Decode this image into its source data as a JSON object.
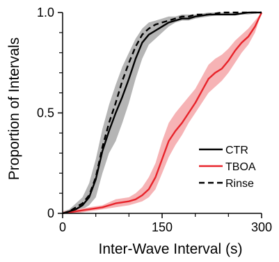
{
  "chart_data": {
    "type": "line",
    "title": "",
    "xlabel": "Inter-Wave Interval (s)",
    "ylabel": "Proportion of Intervals",
    "xlim": [
      0,
      300
    ],
    "ylim": [
      0,
      1
    ],
    "x_ticks": [
      0,
      150,
      300
    ],
    "x_tick_labels": [
      "0",
      "150",
      "300"
    ],
    "y_ticks": [
      0,
      0.5,
      1
    ],
    "y_tick_labels": [
      "0",
      "0.5",
      "1.0"
    ],
    "grid": false,
    "legend_position": "bottom-right",
    "series": [
      {
        "name": "CTR",
        "color": "#000000",
        "dash": "solid",
        "band_color": "#b5b5b5",
        "x": [
          0,
          10,
          20,
          30,
          40,
          50,
          60,
          70,
          80,
          90,
          100,
          110,
          120,
          130,
          140,
          150,
          160,
          170,
          180,
          190,
          200,
          220,
          240,
          260,
          280,
          300
        ],
        "y": [
          0.0,
          0.01,
          0.02,
          0.04,
          0.08,
          0.17,
          0.31,
          0.41,
          0.5,
          0.58,
          0.67,
          0.77,
          0.85,
          0.89,
          0.91,
          0.93,
          0.95,
          0.96,
          0.97,
          0.97,
          0.98,
          0.99,
          0.99,
          0.99,
          1.0,
          1.0
        ],
        "lower": [
          0.0,
          0.0,
          0.0,
          0.02,
          0.04,
          0.08,
          0.2,
          0.3,
          0.36,
          0.45,
          0.55,
          0.67,
          0.77,
          0.84,
          0.87,
          0.9,
          0.93,
          0.95,
          0.96,
          0.96,
          0.97,
          0.98,
          0.99,
          0.99,
          0.99,
          1.0
        ],
        "upper": [
          0.01,
          0.02,
          0.05,
          0.08,
          0.15,
          0.27,
          0.42,
          0.54,
          0.64,
          0.73,
          0.8,
          0.87,
          0.92,
          0.95,
          0.96,
          0.97,
          0.98,
          0.98,
          0.99,
          0.99,
          0.99,
          1.0,
          1.0,
          1.0,
          1.0,
          1.0
        ]
      },
      {
        "name": "TBOA",
        "color": "#e8232a",
        "dash": "solid",
        "band_color": "#f6b3b5",
        "x": [
          0,
          20,
          40,
          60,
          80,
          100,
          110,
          120,
          130,
          140,
          150,
          160,
          170,
          180,
          190,
          200,
          210,
          220,
          230,
          240,
          250,
          260,
          270,
          280,
          290,
          300
        ],
        "y": [
          0.0,
          0.01,
          0.02,
          0.03,
          0.05,
          0.06,
          0.07,
          0.09,
          0.12,
          0.18,
          0.27,
          0.36,
          0.41,
          0.45,
          0.5,
          0.55,
          0.61,
          0.67,
          0.7,
          0.72,
          0.76,
          0.81,
          0.85,
          0.88,
          0.93,
          1.0
        ],
        "lower": [
          0.0,
          0.0,
          0.01,
          0.02,
          0.03,
          0.04,
          0.05,
          0.06,
          0.08,
          0.12,
          0.2,
          0.28,
          0.34,
          0.39,
          0.45,
          0.5,
          0.55,
          0.6,
          0.63,
          0.66,
          0.7,
          0.75,
          0.8,
          0.84,
          0.9,
          1.0
        ],
        "upper": [
          0.01,
          0.02,
          0.03,
          0.04,
          0.07,
          0.08,
          0.1,
          0.13,
          0.18,
          0.25,
          0.36,
          0.45,
          0.5,
          0.54,
          0.58,
          0.62,
          0.68,
          0.74,
          0.77,
          0.79,
          0.82,
          0.86,
          0.89,
          0.92,
          0.96,
          1.0
        ]
      },
      {
        "name": "Rinse",
        "color": "#000000",
        "dash": "dashed",
        "x": [
          0,
          10,
          20,
          30,
          40,
          50,
          60,
          70,
          80,
          90,
          100,
          110,
          120,
          130,
          140,
          150,
          160,
          170,
          180,
          190,
          200,
          220,
          240,
          260,
          280,
          300
        ],
        "y": [
          0.0,
          0.01,
          0.03,
          0.05,
          0.09,
          0.18,
          0.33,
          0.45,
          0.55,
          0.66,
          0.75,
          0.83,
          0.89,
          0.92,
          0.94,
          0.95,
          0.96,
          0.97,
          0.98,
          0.98,
          0.99,
          0.99,
          1.0,
          1.0,
          1.0,
          1.0
        ]
      }
    ]
  }
}
